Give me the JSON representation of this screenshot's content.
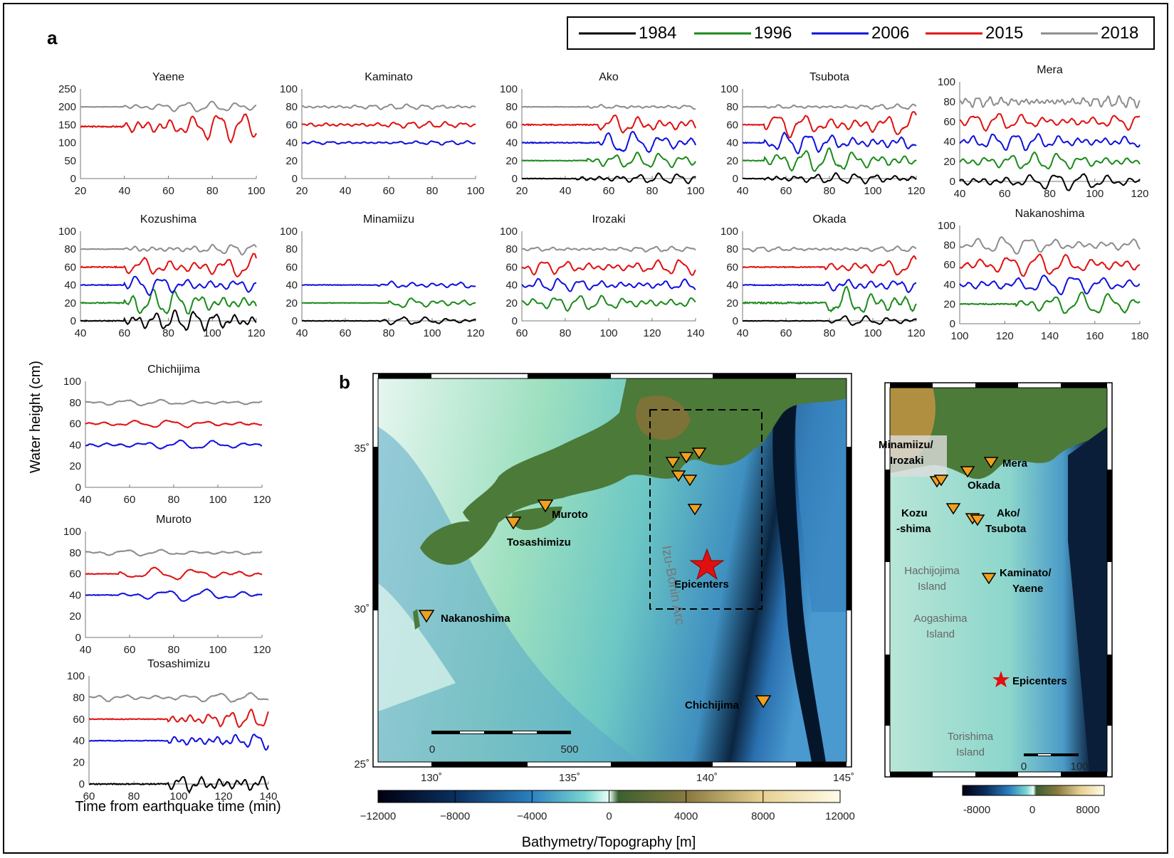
{
  "panel_labels": {
    "a": "a",
    "b": "b"
  },
  "y_axis_label": "Water height (cm)",
  "x_axis_label": "Time from earthquake time (min)",
  "legend": [
    {
      "name": "1984",
      "color": "#000000"
    },
    {
      "name": "1996",
      "color": "#1a8a1a"
    },
    {
      "name": "2006",
      "color": "#1010dd"
    },
    {
      "name": "2015",
      "color": "#e01010"
    },
    {
      "name": "2018",
      "color": "#8c8c8c"
    }
  ],
  "chart_data": [
    {
      "type": "line",
      "title": "Yaene",
      "xlim": [
        20,
        100
      ],
      "xticks": [
        20,
        40,
        60,
        80,
        100
      ],
      "ylim": [
        0,
        250
      ],
      "yticks": [
        0,
        50,
        100,
        150,
        200,
        250
      ],
      "series": [
        {
          "name": "2015",
          "offset": 145,
          "amp": 28,
          "start": 40,
          "freq": 0.55
        },
        {
          "name": "2018",
          "offset": 200,
          "amp": 10,
          "start": 40,
          "freq": 0.55
        }
      ]
    },
    {
      "type": "line",
      "title": "Kaminato",
      "xlim": [
        20,
        100
      ],
      "xticks": [
        20,
        40,
        60,
        80,
        100
      ],
      "ylim": [
        0,
        100
      ],
      "yticks": [
        0,
        20,
        40,
        60,
        80,
        100
      ],
      "series": [
        {
          "name": "2006",
          "offset": 40,
          "amp": 1.5,
          "start": 20,
          "freq": 0.8
        },
        {
          "name": "2015",
          "offset": 60,
          "amp": 2.5,
          "start": 20,
          "freq": 0.8
        },
        {
          "name": "2018",
          "offset": 80,
          "amp": 2,
          "start": 20,
          "freq": 0.8
        }
      ]
    },
    {
      "type": "line",
      "title": "Ako",
      "xlim": [
        20,
        100
      ],
      "xticks": [
        20,
        40,
        60,
        80,
        100
      ],
      "ylim": [
        0,
        100
      ],
      "yticks": [
        0,
        20,
        40,
        60,
        80,
        100
      ],
      "series": [
        {
          "name": "1984",
          "offset": 0,
          "amp": 4,
          "start": 45,
          "freq": 0.7
        },
        {
          "name": "1996",
          "offset": 20,
          "amp": 6,
          "start": 50,
          "freq": 0.6
        },
        {
          "name": "2006",
          "offset": 40,
          "amp": 9,
          "start": 55,
          "freq": 0.5
        },
        {
          "name": "2015",
          "offset": 60,
          "amp": 9,
          "start": 55,
          "freq": 0.55
        },
        {
          "name": "2018",
          "offset": 80,
          "amp": 2,
          "start": 50,
          "freq": 0.8
        }
      ]
    },
    {
      "type": "line",
      "title": "Tsubota",
      "xlim": [
        40,
        120
      ],
      "xticks": [
        40,
        60,
        80,
        100,
        120
      ],
      "ylim": [
        0,
        100
      ],
      "yticks": [
        0,
        20,
        40,
        60,
        80,
        100
      ],
      "series": [
        {
          "name": "1984",
          "offset": 0,
          "amp": 4,
          "start": 50,
          "freq": 0.7
        },
        {
          "name": "1996",
          "offset": 20,
          "amp": 9,
          "start": 50,
          "freq": 0.55
        },
        {
          "name": "2006",
          "offset": 40,
          "amp": 8,
          "start": 50,
          "freq": 0.6
        },
        {
          "name": "2015",
          "offset": 60,
          "amp": 10,
          "start": 50,
          "freq": 0.5
        },
        {
          "name": "2018",
          "offset": 80,
          "amp": 2,
          "start": 50,
          "freq": 0.8
        }
      ]
    },
    {
      "type": "line",
      "title": "Mera",
      "xlim": [
        40,
        120
      ],
      "xticks": [
        40,
        60,
        80,
        100,
        120
      ],
      "ylim": [
        0,
        100
      ],
      "yticks": [
        0,
        20,
        40,
        60,
        80,
        100
      ],
      "series": [
        {
          "name": "1984",
          "offset": 0,
          "amp": 6,
          "start": 40,
          "freq": 0.55
        },
        {
          "name": "1996",
          "offset": 20,
          "amp": 6,
          "start": 40,
          "freq": 0.6
        },
        {
          "name": "2006",
          "offset": 40,
          "amp": 6,
          "start": 40,
          "freq": 0.65
        },
        {
          "name": "2015",
          "offset": 60,
          "amp": 6,
          "start": 40,
          "freq": 0.6
        },
        {
          "name": "2018",
          "offset": 80,
          "amp": 4,
          "start": 40,
          "freq": 1.2
        }
      ]
    },
    {
      "type": "line",
      "title": "Kozushima",
      "xlim": [
        40,
        120
      ],
      "xticks": [
        40,
        60,
        80,
        100,
        120
      ],
      "ylim": [
        0,
        100
      ],
      "yticks": [
        0,
        20,
        40,
        60,
        80,
        100
      ],
      "series": [
        {
          "name": "1984",
          "offset": 0,
          "amp": 8,
          "start": 60,
          "freq": 0.7
        },
        {
          "name": "1996",
          "offset": 20,
          "amp": 10,
          "start": 60,
          "freq": 0.6
        },
        {
          "name": "2006",
          "offset": 40,
          "amp": 8,
          "start": 60,
          "freq": 0.55
        },
        {
          "name": "2015",
          "offset": 60,
          "amp": 10,
          "start": 60,
          "freq": 0.5
        },
        {
          "name": "2018",
          "offset": 80,
          "amp": 4,
          "start": 60,
          "freq": 0.7
        }
      ]
    },
    {
      "type": "line",
      "title": "Minamiizu",
      "xlim": [
        40,
        120
      ],
      "xticks": [
        40,
        60,
        80,
        100,
        120
      ],
      "ylim": [
        0,
        100
      ],
      "yticks": [
        0,
        20,
        40,
        60,
        80,
        100
      ],
      "series": [
        {
          "name": "1984",
          "offset": 0,
          "amp": 3,
          "start": 75,
          "freq": 0.6
        },
        {
          "name": "1996",
          "offset": 20,
          "amp": 5,
          "start": 80,
          "freq": 0.55
        },
        {
          "name": "2006",
          "offset": 40,
          "amp": 4,
          "start": 75,
          "freq": 0.6
        }
      ]
    },
    {
      "type": "line",
      "title": "Irozaki",
      "xlim": [
        60,
        140
      ],
      "xticks": [
        60,
        80,
        100,
        120,
        140
      ],
      "ylim": [
        0,
        100
      ],
      "yticks": [
        0,
        20,
        40,
        60,
        80,
        100
      ],
      "series": [
        {
          "name": "1996",
          "offset": 20,
          "amp": 6,
          "start": 60,
          "freq": 0.6
        },
        {
          "name": "2006",
          "offset": 40,
          "amp": 5,
          "start": 60,
          "freq": 0.65
        },
        {
          "name": "2015",
          "offset": 60,
          "amp": 6,
          "start": 60,
          "freq": 0.6
        },
        {
          "name": "2018",
          "offset": 80,
          "amp": 2,
          "start": 60,
          "freq": 0.8
        }
      ]
    },
    {
      "type": "line",
      "title": "Okada",
      "xlim": [
        40,
        120
      ],
      "xticks": [
        40,
        60,
        80,
        100,
        120
      ],
      "ylim": [
        0,
        100
      ],
      "yticks": [
        0,
        20,
        40,
        60,
        80,
        100
      ],
      "series": [
        {
          "name": "1984",
          "offset": 0,
          "amp": 4,
          "start": 80,
          "freq": 0.6
        },
        {
          "name": "1996",
          "offset": 20,
          "amp": 14,
          "start": 78,
          "freq": 0.5
        },
        {
          "name": "2006",
          "offset": 40,
          "amp": 8,
          "start": 78,
          "freq": 0.55
        },
        {
          "name": "2015",
          "offset": 60,
          "amp": 8,
          "start": 78,
          "freq": 0.5
        },
        {
          "name": "2018",
          "offset": 80,
          "amp": 2,
          "start": 40,
          "freq": 0.8
        }
      ]
    },
    {
      "type": "line",
      "title": "Nakanoshima",
      "xlim": [
        100,
        180
      ],
      "xticks": [
        100,
        120,
        140,
        160,
        180
      ],
      "ylim": [
        0,
        100
      ],
      "yticks": [
        0,
        20,
        40,
        60,
        80,
        100
      ],
      "series": [
        {
          "name": "1996",
          "offset": 20,
          "amp": 8,
          "start": 125,
          "freq": 0.5
        },
        {
          "name": "2006",
          "offset": 40,
          "amp": 7,
          "start": 100,
          "freq": 0.5
        },
        {
          "name": "2015",
          "offset": 60,
          "amp": 8,
          "start": 100,
          "freq": 0.5
        },
        {
          "name": "2018",
          "offset": 80,
          "amp": 6,
          "start": 100,
          "freq": 0.55
        }
      ]
    },
    {
      "type": "line",
      "title": "Chichijima",
      "xlim": [
        40,
        120
      ],
      "xticks": [
        40,
        60,
        80,
        100,
        120
      ],
      "ylim": [
        0,
        100
      ],
      "yticks": [
        0,
        20,
        40,
        60,
        80,
        100
      ],
      "series": [
        {
          "name": "2006",
          "offset": 40,
          "amp": 3,
          "start": 40,
          "freq": 0.4
        },
        {
          "name": "2015",
          "offset": 60,
          "amp": 2.5,
          "start": 40,
          "freq": 0.4
        },
        {
          "name": "2018",
          "offset": 80,
          "amp": 2,
          "start": 40,
          "freq": 0.4
        }
      ]
    },
    {
      "type": "line",
      "title": "Muroto",
      "xlim": [
        40,
        120
      ],
      "xticks": [
        40,
        60,
        80,
        100,
        120
      ],
      "ylim": [
        0,
        100
      ],
      "yticks": [
        0,
        20,
        40,
        60,
        80,
        100
      ],
      "series": [
        {
          "name": "2006",
          "offset": 40,
          "amp": 4,
          "start": 55,
          "freq": 0.35
        },
        {
          "name": "2015",
          "offset": 60,
          "amp": 4,
          "start": 55,
          "freq": 0.35
        },
        {
          "name": "2018",
          "offset": 80,
          "amp": 2,
          "start": 40,
          "freq": 0.4
        }
      ]
    },
    {
      "type": "line",
      "title": "Tosashimizu",
      "xlim": [
        60,
        140
      ],
      "xticks": [
        60,
        80,
        100,
        120,
        140
      ],
      "ylim": [
        0,
        100
      ],
      "yticks": [
        0,
        20,
        40,
        60,
        80,
        100
      ],
      "series": [
        {
          "name": "1984",
          "offset": 0,
          "amp": 8,
          "start": 95,
          "freq": 0.7
        },
        {
          "name": "2006",
          "offset": 40,
          "amp": 6,
          "start": 95,
          "freq": 0.7
        },
        {
          "name": "2015",
          "offset": 60,
          "amp": 6,
          "start": 95,
          "freq": 0.7
        },
        {
          "name": "2018",
          "offset": 80,
          "amp": 3,
          "start": 60,
          "freq": 0.45
        }
      ]
    }
  ],
  "map": {
    "lat_ticks": [
      "25˚",
      "30˚",
      "35˚"
    ],
    "lon_ticks": [
      "130˚",
      "135˚",
      "140˚",
      "145˚"
    ],
    "arc_label": "Izu-Bonin Arc",
    "epicenter_label": "Epicenters",
    "scale": [
      "0",
      "500"
    ],
    "stations": [
      {
        "name": "Muroto"
      },
      {
        "name": "Tosashimizu"
      },
      {
        "name": "Nakanoshima"
      },
      {
        "name": "Chichijima"
      }
    ],
    "colorbar": {
      "label": "Bathymetry/Topography [m]",
      "ticks": [
        "−12000",
        "−8000",
        "−4000",
        "0",
        "4000",
        "8000",
        "12000"
      ]
    }
  },
  "inset": {
    "labels": [
      "Minamiizu/",
      "Irozaki",
      "Mera",
      "Okada",
      "Kozu",
      "-shima",
      "Ako/",
      "Tsubota",
      "Kaminato/",
      "Yaene",
      "Epicenters"
    ],
    "islands": [
      "Hachijojima",
      "Island",
      "Aogashima",
      "Island",
      "Torishima",
      "Island"
    ],
    "scale": [
      "0",
      "100"
    ],
    "colorbar_ticks": [
      "-8000",
      "0",
      "8000"
    ]
  }
}
